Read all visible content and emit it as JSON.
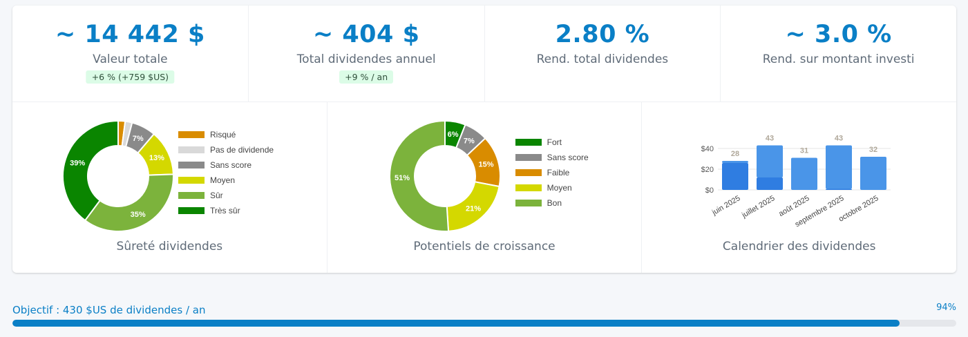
{
  "stats": [
    {
      "value": "~ 14 442 $",
      "label": "Valeur totale",
      "badge": "+6 % (+759 $US)"
    },
    {
      "value": "~ 404 $",
      "label": "Total dividendes annuel",
      "badge": "+9 % / an"
    },
    {
      "value": "2.80 %",
      "label": "Rend. total dividendes",
      "badge": ""
    },
    {
      "value": "~ 3.0 %",
      "label": "Rend. sur montant investi",
      "badge": ""
    }
  ],
  "panels": {
    "surete": {
      "title": "Sûreté dividendes",
      "chart_data": {
        "type": "pie",
        "donut": true,
        "slices": [
          {
            "label": "Risqué",
            "value": 2,
            "color": "#d98c00",
            "show": ""
          },
          {
            "label": "Pas de dividende",
            "value": 2,
            "color": "#d9d9d9",
            "show": ""
          },
          {
            "label": "Sans score",
            "value": 7,
            "color": "#8a8a8a",
            "show": "7%"
          },
          {
            "label": "Moyen",
            "value": 13,
            "color": "#d4d800",
            "show": "13%"
          },
          {
            "label": "Sûr",
            "value": 35,
            "color": "#7cb33c",
            "show": "35%"
          },
          {
            "label": "Très sûr",
            "value": 39,
            "color": "#0a8500",
            "show": "39%"
          }
        ]
      }
    },
    "croissance": {
      "title": "Potentiels de croissance",
      "chart_data": {
        "type": "pie",
        "donut": true,
        "slices": [
          {
            "label": "Fort",
            "value": 6,
            "color": "#0a8500",
            "show": "6%"
          },
          {
            "label": "Sans score",
            "value": 7,
            "color": "#8a8a8a",
            "show": "7%"
          },
          {
            "label": "Faible",
            "value": 15,
            "color": "#d98c00",
            "show": "15%"
          },
          {
            "label": "Moyen",
            "value": 21,
            "color": "#d4d800",
            "show": "21%"
          },
          {
            "label": "Bon",
            "value": 51,
            "color": "#7cb33c",
            "show": "51%"
          }
        ]
      }
    },
    "calendrier": {
      "title": "Calendrier des dividendes",
      "chart_data": {
        "type": "bar",
        "stacked": true,
        "categories": [
          "juin 2025",
          "juillet 2025",
          "août 2025",
          "septembre 2025",
          "octobre 2025"
        ],
        "series": [
          {
            "values": [
              26,
              12,
              0,
              1,
              0
            ],
            "color": "#2f7de1"
          },
          {
            "values": [
              2,
              31,
              31,
              42,
              32
            ],
            "color": "#4a95e8"
          }
        ],
        "totals": [
          "28",
          "43",
          "31",
          "43",
          "32"
        ],
        "yticks": [
          "$0",
          "$20",
          "$40"
        ],
        "ylim": [
          0,
          50
        ]
      }
    }
  },
  "goal": {
    "label": "Objectif : 430 $US de dividendes / an",
    "percent_text": "94%",
    "progress": 0.94
  }
}
